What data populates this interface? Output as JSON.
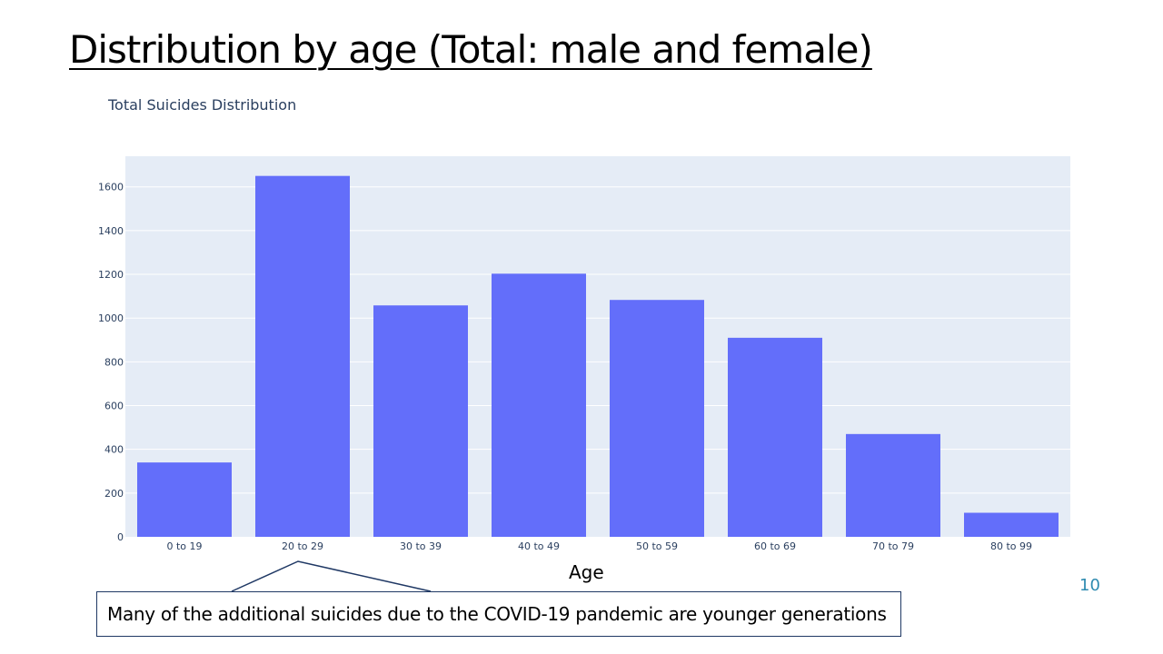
{
  "slide": {
    "title": "Distribution by age (Total: male and female)",
    "page_number": "10",
    "callout_text": "Many of the additional suicides due to the COVID-19 pandemic are younger generations"
  },
  "chart_data": {
    "type": "bar",
    "title": "Total Suicides Distribution",
    "xlabel": "Age",
    "ylabel": "",
    "categories": [
      "0 to 19",
      "20 to 29",
      "30 to 39",
      "40 to 49",
      "50 to 59",
      "60 to 69",
      "70 to 79",
      "80 to 99"
    ],
    "values": [
      340,
      1650,
      1058,
      1203,
      1083,
      910,
      470,
      110
    ],
    "ylim": [
      0,
      1740
    ],
    "yticks": [
      0,
      200,
      400,
      600,
      800,
      1000,
      1200,
      1400,
      1600
    ],
    "grid": true,
    "legend": "none",
    "bar_color": "#636efa",
    "plot_bg": "#e5ecf6"
  }
}
